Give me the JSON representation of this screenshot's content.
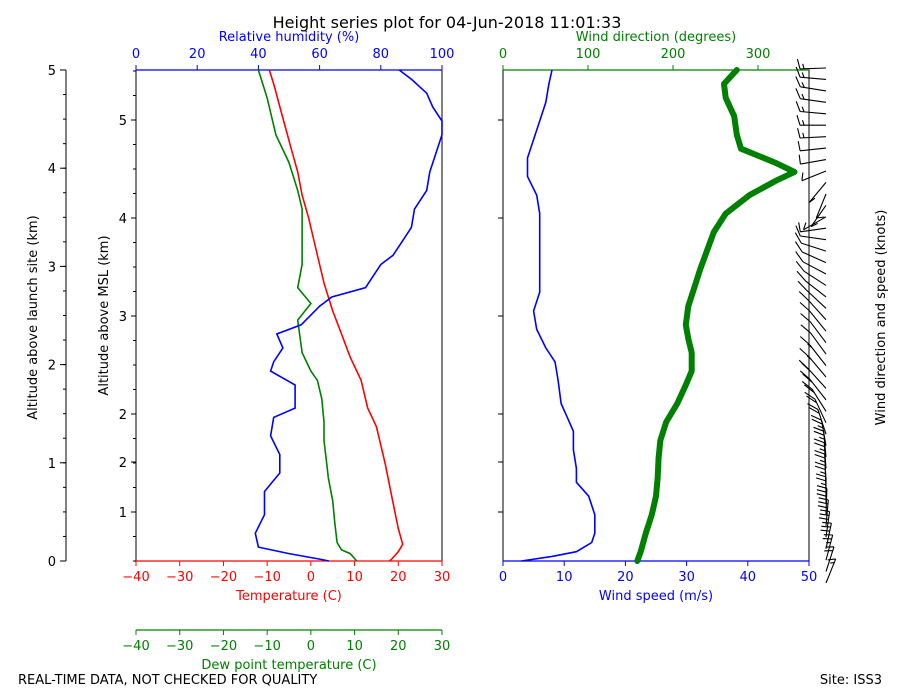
{
  "chart_data": {
    "title": "Height series plot for 04-Jun-2018 11:01:33",
    "footer_left": "REAL-TIME DATA, NOT CHECKED FOR QUALITY",
    "footer_right": "Site: ISS3",
    "colors": {
      "temperature": "#ff0000",
      "dewpoint": "#008000",
      "rh": "#0000ff",
      "wind_speed": "#0000ff",
      "wind_dir": "#008000",
      "barbs": "#000000"
    },
    "panels": [
      {
        "type": "line",
        "left_axes": [
          {
            "label": "Altitude above launch site (km)",
            "ticks": [
              "0",
              "1",
              "2",
              "3",
              "4",
              "5"
            ]
          },
          {
            "label": "Altitude above MSL (km)",
            "ticks": [
              "1",
              "2",
              "2",
              "3",
              "4",
              "5"
            ]
          }
        ],
        "bottom_axes": [
          {
            "label": "Temperature (C)",
            "color": "#ff0000",
            "range": [
              -40,
              30
            ],
            "ticks": [
              "-40",
              "-30",
              "-20",
              "-10",
              "0",
              "10",
              "20",
              "30"
            ]
          },
          {
            "label": "Dew point temperature (C)",
            "color": "#008000",
            "range": [
              -40,
              30
            ],
            "ticks": [
              "-40",
              "-30",
              "-20",
              "-10",
              "0",
              "10",
              "20",
              "30"
            ]
          }
        ],
        "top_axis": {
          "label": "Relative humidity (%)",
          "color": "#0000ff",
          "range": [
            0,
            100
          ],
          "ticks": [
            "0",
            "20",
            "40",
            "60",
            "80",
            "100"
          ]
        },
        "ylim": [
          0,
          5.3
        ],
        "series": [
          {
            "quantity": "temperature",
            "axis": "temperature",
            "points": [
              [
                18,
                0
              ],
              [
                18.5,
                0.02
              ],
              [
                20,
                0.1
              ],
              [
                21,
                0.18
              ],
              [
                20,
                0.35
              ],
              [
                18.5,
                0.7
              ],
              [
                17,
                1.05
              ],
              [
                16,
                1.25
              ],
              [
                15,
                1.45
              ],
              [
                13,
                1.65
              ],
              [
                11.5,
                1.95
              ],
              [
                9,
                2.2
              ],
              [
                7,
                2.45
              ],
              [
                5,
                2.7
              ],
              [
                3,
                3.0
              ],
              [
                2,
                3.2
              ],
              [
                1,
                3.4
              ],
              [
                -0.5,
                3.7
              ],
              [
                -2,
                3.95
              ],
              [
                -3,
                4.2
              ],
              [
                -4.5,
                4.45
              ],
              [
                -6.5,
                4.8
              ],
              [
                -8.5,
                5.15
              ],
              [
                -9.5,
                5.3
              ]
            ]
          },
          {
            "quantity": "dewpoint",
            "axis": "dewpoint",
            "points": [
              [
                10.5,
                0
              ],
              [
                9,
                0.08
              ],
              [
                7,
                0.12
              ],
              [
                6,
                0.2
              ],
              [
                5.5,
                0.4
              ],
              [
                5,
                0.65
              ],
              [
                4,
                0.9
              ],
              [
                3.5,
                1.1
              ],
              [
                3,
                1.3
              ],
              [
                3,
                1.5
              ],
              [
                2.5,
                1.75
              ],
              [
                1.5,
                1.95
              ],
              [
                0,
                2.05
              ],
              [
                -2,
                2.25
              ],
              [
                -3,
                2.6
              ],
              [
                0,
                2.78
              ],
              [
                -3,
                2.95
              ],
              [
                -2,
                3.2
              ],
              [
                -2,
                3.5
              ],
              [
                -2,
                3.8
              ],
              [
                -3,
                4.0
              ],
              [
                -5,
                4.3
              ],
              [
                -8,
                4.6
              ],
              [
                -10,
                5.0
              ],
              [
                -12,
                5.3
              ]
            ]
          },
          {
            "quantity": "relative_humidity",
            "axis": "rh",
            "points": [
              [
                63,
                0
              ],
              [
                60,
                0.02
              ],
              [
                50,
                0.08
              ],
              [
                40,
                0.15
              ],
              [
                39,
                0.3
              ],
              [
                42,
                0.5
              ],
              [
                42,
                0.75
              ],
              [
                47,
                0.95
              ],
              [
                47,
                1.15
              ],
              [
                44,
                1.35
              ],
              [
                45,
                1.55
              ],
              [
                52,
                1.65
              ],
              [
                52,
                1.9
              ],
              [
                44,
                2.05
              ],
              [
                45,
                2.15
              ],
              [
                48,
                2.3
              ],
              [
                46,
                2.45
              ],
              [
                54,
                2.55
              ],
              [
                60,
                2.75
              ],
              [
                64,
                2.85
              ],
              [
                75,
                2.95
              ],
              [
                77,
                3.05
              ],
              [
                80,
                3.2
              ],
              [
                84,
                3.3
              ],
              [
                87,
                3.45
              ],
              [
                90,
                3.6
              ],
              [
                91,
                3.8
              ],
              [
                95,
                4.0
              ],
              [
                96,
                4.2
              ],
              [
                98,
                4.4
              ],
              [
                100,
                4.6
              ],
              [
                100,
                4.75
              ],
              [
                97,
                4.9
              ],
              [
                95,
                5.05
              ],
              [
                90,
                5.2
              ],
              [
                86,
                5.3
              ]
            ]
          }
        ]
      },
      {
        "type": "line",
        "left_axes": [
          {
            "label": "",
            "ticks": []
          }
        ],
        "bottom_axes": [
          {
            "label": "Wind speed (m/s)",
            "color": "#0000ff",
            "range": [
              0,
              50
            ],
            "ticks": [
              "0",
              "10",
              "20",
              "30",
              "40",
              "50"
            ]
          }
        ],
        "top_axis": {
          "label": "Wind direction (degrees)",
          "color": "#008000",
          "range": [
            0,
            360
          ],
          "ticks": [
            "0",
            "100",
            "200",
            "300"
          ]
        },
        "right_axis": {
          "label": "Wind direction and speed (knots)"
        },
        "ylim": [
          0,
          5.3
        ],
        "series": [
          {
            "quantity": "wind_speed",
            "axis": "speed",
            "points": [
              [
                3,
                0
              ],
              [
                8,
                0.05
              ],
              [
                12,
                0.1
              ],
              [
                14.5,
                0.2
              ],
              [
                15,
                0.3
              ],
              [
                15,
                0.5
              ],
              [
                14,
                0.7
              ],
              [
                12,
                0.85
              ],
              [
                12,
                1.0
              ],
              [
                11.5,
                1.2
              ],
              [
                11.5,
                1.4
              ],
              [
                10.5,
                1.55
              ],
              [
                9.5,
                1.7
              ],
              [
                9,
                1.95
              ],
              [
                8.5,
                2.15
              ],
              [
                7,
                2.3
              ],
              [
                5.5,
                2.5
              ],
              [
                5,
                2.7
              ],
              [
                6,
                2.9
              ],
              [
                6,
                3.1
              ],
              [
                6,
                3.3
              ],
              [
                6,
                3.5
              ],
              [
                6,
                3.75
              ],
              [
                5.5,
                3.95
              ],
              [
                4,
                4.15
              ],
              [
                4,
                4.35
              ],
              [
                5,
                4.55
              ],
              [
                6,
                4.75
              ],
              [
                7,
                4.95
              ],
              [
                7.5,
                5.15
              ],
              [
                8,
                5.3
              ]
            ]
          },
          {
            "quantity": "wind_direction",
            "axis": "direction",
            "points": [
              [
                158,
                0
              ],
              [
                162,
                0.1
              ],
              [
                168,
                0.3
              ],
              [
                175,
                0.5
              ],
              [
                180,
                0.7
              ],
              [
                182,
                0.9
              ],
              [
                183,
                1.1
              ],
              [
                185,
                1.3
              ],
              [
                192,
                1.5
              ],
              [
                205,
                1.7
              ],
              [
                215,
                1.9
              ],
              [
                222,
                2.05
              ],
              [
                222,
                2.25
              ],
              [
                218,
                2.4
              ],
              [
                215,
                2.55
              ],
              [
                218,
                2.75
              ],
              [
                225,
                2.95
              ],
              [
                232,
                3.15
              ],
              [
                240,
                3.35
              ],
              [
                248,
                3.55
              ],
              [
                262,
                3.75
              ],
              [
                290,
                3.95
              ],
              [
                320,
                4.1
              ],
              [
                343,
                4.2
              ],
              [
                320,
                4.3
              ],
              [
                280,
                4.45
              ],
              [
                275,
                4.6
              ],
              [
                272,
                4.8
              ],
              [
                262,
                5.0
              ],
              [
                260,
                5.15
              ],
              [
                275,
                5.3
              ]
            ]
          }
        ]
      }
    ],
    "barbs": [
      [
        158,
        16
      ],
      [
        162,
        22
      ],
      [
        165,
        26
      ],
      [
        168,
        29
      ],
      [
        172,
        29
      ],
      [
        175,
        29
      ],
      [
        178,
        28
      ],
      [
        180,
        27
      ],
      [
        182,
        25
      ],
      [
        183,
        24
      ],
      [
        184,
        23
      ],
      [
        185,
        23
      ],
      [
        190,
        23
      ],
      [
        198,
        22
      ],
      [
        205,
        21
      ],
      [
        212,
        20
      ],
      [
        218,
        19
      ],
      [
        222,
        18
      ],
      [
        220,
        17
      ],
      [
        218,
        15
      ],
      [
        216,
        12
      ],
      [
        217,
        10
      ],
      [
        219,
        10
      ],
      [
        222,
        11
      ],
      [
        227,
        12
      ],
      [
        232,
        12
      ],
      [
        237,
        12
      ],
      [
        242,
        12
      ],
      [
        246,
        12
      ],
      [
        252,
        12
      ],
      [
        262,
        12
      ],
      [
        278,
        11
      ],
      [
        300,
        10
      ],
      [
        325,
        8
      ],
      [
        338,
        8
      ],
      [
        320,
        8
      ],
      [
        292,
        10
      ],
      [
        280,
        11
      ],
      [
        276,
        12
      ],
      [
        273,
        13
      ],
      [
        270,
        14
      ],
      [
        265,
        14
      ],
      [
        262,
        15
      ],
      [
        261,
        15
      ],
      [
        265,
        15
      ],
      [
        272,
        16
      ]
    ]
  }
}
